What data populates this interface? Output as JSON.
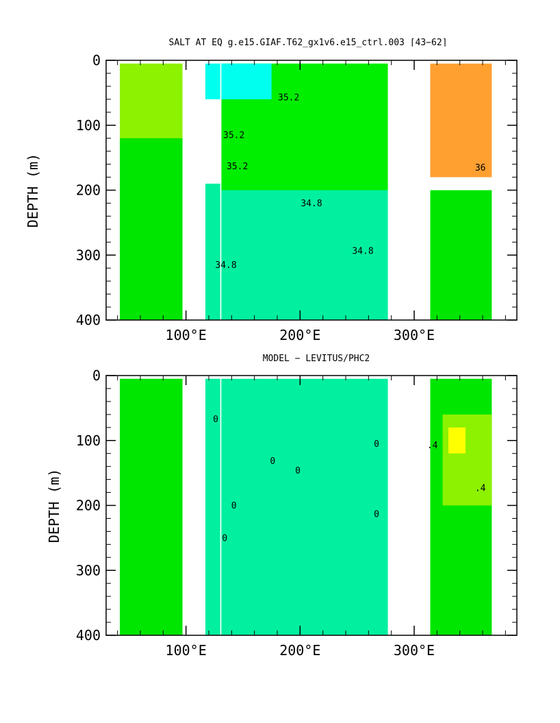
{
  "chart_data": [
    {
      "type": "heatmap",
      "title": "SALT AT EQ  g.e15.GIAF.T62_gx1v6.e15_ctrl.003  ⌈43−62⌉",
      "xlabel": "",
      "ylabel": "DEPTH (m)",
      "xlim": [
        30,
        390
      ],
      "ylim": [
        400,
        0
      ],
      "yticks": [
        0,
        100,
        200,
        300,
        400
      ],
      "xtick_values": [
        100,
        200,
        300
      ],
      "xtick_labels": [
        "100°E",
        "200°E",
        "300°E"
      ],
      "grid": false,
      "land_gaps_lon": [
        [
          97,
          117
        ],
        [
          130,
          131
        ],
        [
          277,
          314
        ]
      ],
      "regions": [
        {
          "color": "#8cf200",
          "lon": [
            42,
            97
          ],
          "depth": [
            5,
            210
          ]
        },
        {
          "color": "#00e600",
          "lon": [
            42,
            97
          ],
          "depth": [
            120,
            400
          ]
        },
        {
          "color": "#00f0a0",
          "lon": [
            117,
            277
          ],
          "depth": [
            190,
            400
          ]
        },
        {
          "color": "#00ee00",
          "lon": [
            131,
            277
          ],
          "depth": [
            5,
            200
          ]
        },
        {
          "color": "#00ffee",
          "lon": [
            117,
            175
          ],
          "depth": [
            5,
            60
          ]
        },
        {
          "color": "#ffa030",
          "lon": [
            314,
            368
          ],
          "depth": [
            5,
            180
          ]
        },
        {
          "color": "#00e600",
          "lon": [
            314,
            368
          ],
          "depth": [
            200,
            400
          ]
        }
      ],
      "contour_labels": [
        {
          "text": "35.2",
          "lon": 190,
          "depth": 62
        },
        {
          "text": "35.2",
          "lon": 142,
          "depth": 120
        },
        {
          "text": "35.2",
          "lon": 145,
          "depth": 168
        },
        {
          "text": "34.8",
          "lon": 210,
          "depth": 225
        },
        {
          "text": "34.8",
          "lon": 255,
          "depth": 298
        },
        {
          "text": "34.8",
          "lon": 135,
          "depth": 320
        },
        {
          "text": "36",
          "lon": 358,
          "depth": 170
        }
      ]
    },
    {
      "type": "heatmap",
      "title": "MODEL − LEVITUS/PHC2",
      "xlabel": "",
      "ylabel": "DEPTH (m)",
      "xlim": [
        30,
        390
      ],
      "ylim": [
        400,
        0
      ],
      "yticks": [
        0,
        100,
        200,
        300,
        400
      ],
      "xtick_values": [
        100,
        200,
        300
      ],
      "xtick_labels": [
        "100°E",
        "200°E",
        "300°E"
      ],
      "grid": false,
      "land_gaps_lon": [
        [
          97,
          117
        ],
        [
          130,
          131
        ],
        [
          277,
          314
        ]
      ],
      "regions": [
        {
          "color": "#00e600",
          "lon": [
            42,
            97
          ],
          "depth": [
            5,
            400
          ]
        },
        {
          "color": "#00f0a0",
          "lon": [
            117,
            277
          ],
          "depth": [
            5,
            400
          ]
        },
        {
          "color": "#00e600",
          "lon": [
            314,
            368
          ],
          "depth": [
            5,
            400
          ]
        },
        {
          "color": "#8cf200",
          "lon": [
            325,
            368
          ],
          "depth": [
            60,
            200
          ]
        },
        {
          "color": "#ffff00",
          "lon": [
            330,
            345
          ],
          "depth": [
            80,
            120
          ]
        }
      ],
      "contour_labels": [
        {
          "text": "0",
          "lon": 126,
          "depth": 72
        },
        {
          "text": "0",
          "lon": 176,
          "depth": 136
        },
        {
          "text": "0",
          "lon": 198,
          "depth": 151
        },
        {
          "text": "0",
          "lon": 267,
          "depth": 110
        },
        {
          "text": "0",
          "lon": 267,
          "depth": 218
        },
        {
          "text": "0",
          "lon": 142,
          "depth": 205
        },
        {
          "text": "0",
          "lon": 134,
          "depth": 255
        },
        {
          "text": ".4",
          "lon": 358,
          "depth": 178
        },
        {
          "text": ".4",
          "lon": 316,
          "depth": 112
        }
      ]
    }
  ]
}
